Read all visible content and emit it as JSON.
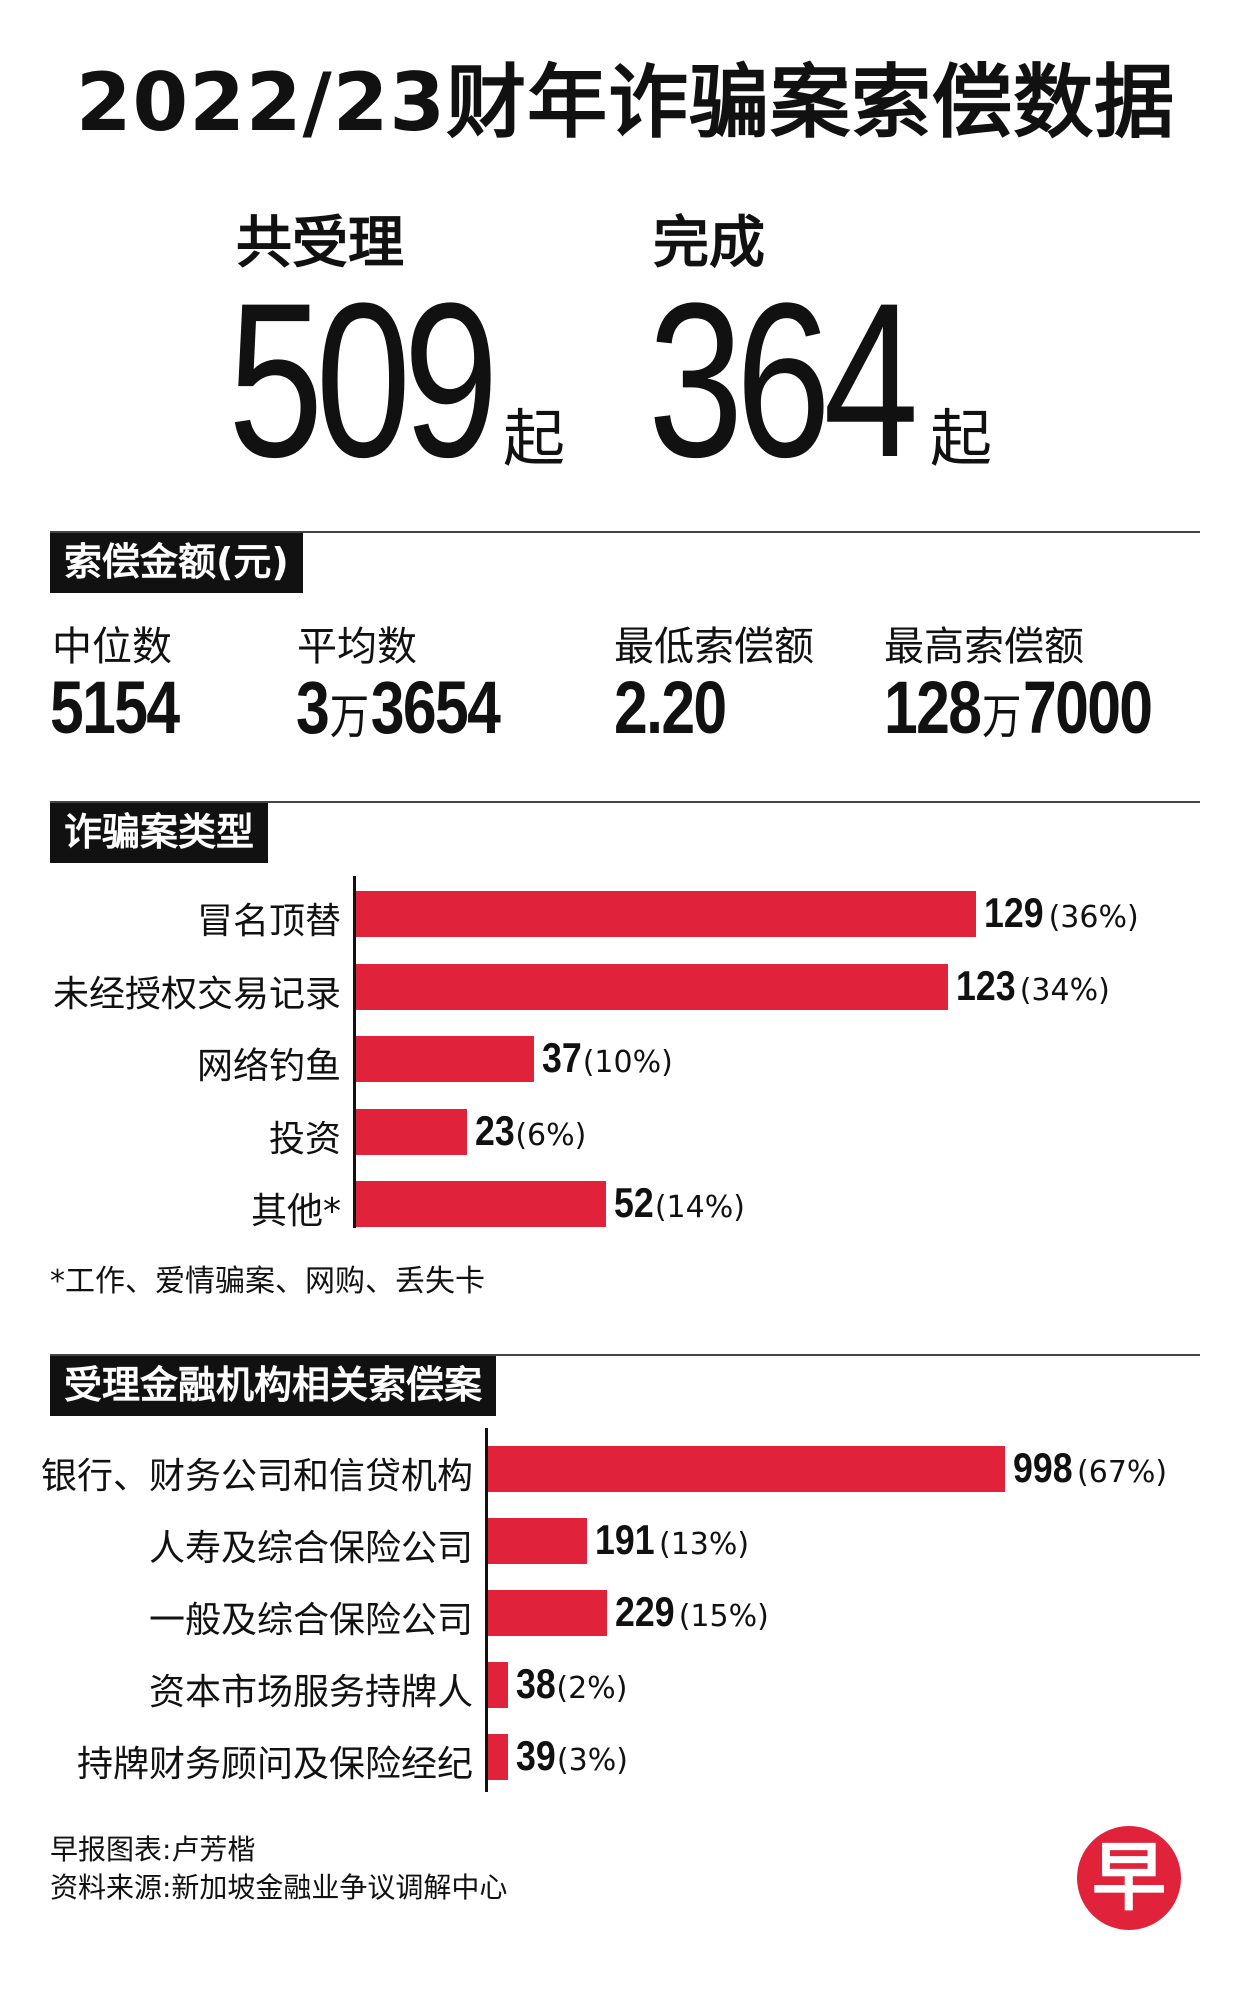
{
  "title": "2022/23财年诈骗案索偿数据",
  "highlights": [
    {
      "label": "共受理",
      "value": "509",
      "unit": "起"
    },
    {
      "label": "完成",
      "value": "364",
      "unit": "起"
    }
  ],
  "compensation": {
    "heading": "索偿金额(元)",
    "stats": [
      {
        "label": "中位数",
        "value_parts": [
          "5154"
        ]
      },
      {
        "label": "平均数",
        "value_parts": [
          "3",
          "万",
          "3654"
        ]
      },
      {
        "label": "最低索偿额",
        "value_parts": [
          "2.20"
        ]
      },
      {
        "label": "最高索偿额",
        "value_parts": [
          "128",
          "万",
          "7000"
        ]
      }
    ]
  },
  "footnote": "*工作、爱情骗案、网购、丢失卡",
  "credits": {
    "line1": "早报图表:卢芳楷",
    "line2": "资料来源:新加坡金融业争议调解中心"
  },
  "logo_char": "早",
  "colors": {
    "bar": "#e0233b",
    "heading_bg": "#111111"
  },
  "chart_data": [
    {
      "type": "bar",
      "orientation": "horizontal",
      "title": "诈骗案类型",
      "categories": [
        "冒名顶替",
        "未经授权交易记录",
        "网络钓鱼",
        "投资",
        "其他*"
      ],
      "values": [
        129,
        123,
        37,
        23,
        52
      ],
      "percent_labels": [
        "(36%)",
        "(34%)",
        "(10%)",
        "(6%)",
        "(14%)"
      ]
    },
    {
      "type": "bar",
      "orientation": "horizontal",
      "title": "受理金融机构相关索偿案",
      "categories": [
        "银行、财务公司和信贷机构",
        "人寿及综合保险公司",
        "一般及综合保险公司",
        "资本市场服务持牌人",
        "持牌财务顾问及保险经纪"
      ],
      "values": [
        998,
        191,
        229,
        38,
        39
      ],
      "percent_labels": [
        "(67%)",
        "(13%)",
        "(15%)",
        "(2%)",
        "(3%)"
      ]
    }
  ]
}
